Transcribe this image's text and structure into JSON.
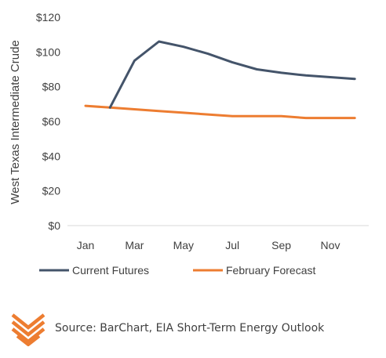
{
  "chart_data": {
    "type": "line",
    "title": "",
    "ylabel": "West Texas Intermediate Crude",
    "xlabel": "",
    "ylim": [
      0,
      120
    ],
    "yticks": [
      "$0",
      "$20",
      "$40",
      "$60",
      "$80",
      "$100",
      "$120"
    ],
    "xticks": [
      "Jan",
      "Mar",
      "May",
      "Jul",
      "Sep",
      "Nov"
    ],
    "grid": false,
    "legend_position": "bottom",
    "series": [
      {
        "name": "Current Futures",
        "color": "#44546a",
        "x": [
          "Feb",
          "Mar",
          "Apr",
          "May",
          "Jun",
          "Jul",
          "Aug",
          "Sep",
          "Oct",
          "Nov",
          "Dec"
        ],
        "values": [
          68,
          95,
          106,
          103,
          99,
          94,
          90,
          88,
          86.5,
          85.5,
          84.5
        ]
      },
      {
        "name": "February Forecast",
        "color": "#ed7d31",
        "x": [
          "Jan",
          "Feb",
          "Mar",
          "Apr",
          "May",
          "Jun",
          "Jul",
          "Aug",
          "Sep",
          "Oct",
          "Nov",
          "Dec"
        ],
        "values": [
          69,
          68,
          67,
          66,
          65,
          64,
          63,
          63,
          63,
          62,
          62,
          62
        ]
      }
    ]
  },
  "source": {
    "text": "Source: BarChart, EIA Short-Term Energy Outlook",
    "logo_color": "#ed7d31",
    "logo_icon": "chevron-stack-logo"
  }
}
